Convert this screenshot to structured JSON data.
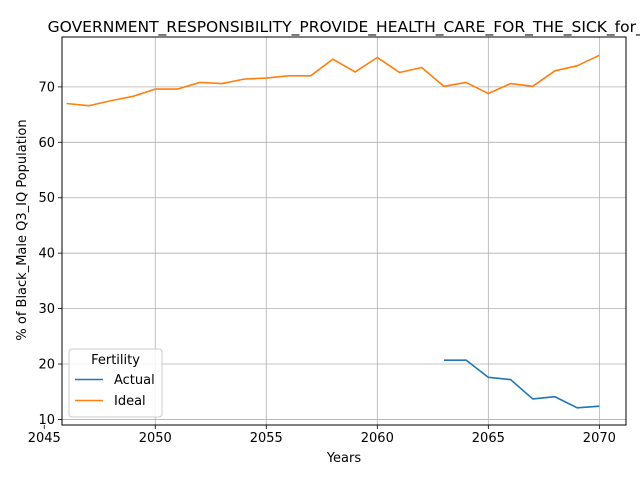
{
  "chart_data": {
    "type": "line",
    "title": "GOVERNMENT_RESPONSIBILITY_PROVIDE_HEALTH_CARE_FOR_THE_SICK_for_B",
    "xlabel": "Years",
    "ylabel": "% of Black_Male Q3_IQ Population",
    "xlim": [
      2045.8,
      2071.2
    ],
    "ylim": [
      9.0,
      79.0
    ],
    "xticks": [
      2045,
      2050,
      2055,
      2060,
      2065,
      2070
    ],
    "yticks": [
      10,
      20,
      30,
      40,
      50,
      60,
      70
    ],
    "grid": true,
    "legend": {
      "title": "Fertility",
      "placement": "lower-left"
    },
    "series": [
      {
        "name": "Actual",
        "color": "#1f77b4",
        "x": [
          2063,
          2064,
          2065,
          2066,
          2067,
          2068,
          2069,
          2070
        ],
        "y": [
          20.7,
          20.7,
          17.6,
          17.2,
          13.7,
          14.1,
          12.1,
          12.4
        ]
      },
      {
        "name": "Ideal",
        "color": "#ff7f0e",
        "x": [
          2046,
          2047,
          2048,
          2049,
          2050,
          2051,
          2052,
          2053,
          2054,
          2055,
          2056,
          2057,
          2058,
          2059,
          2060,
          2061,
          2062,
          2063,
          2064,
          2065,
          2066,
          2067,
          2068,
          2069,
          2070
        ],
        "y": [
          67.0,
          66.6,
          67.5,
          68.3,
          69.6,
          69.6,
          70.8,
          70.6,
          71.4,
          71.6,
          72.0,
          72.0,
          75.0,
          72.7,
          75.3,
          72.6,
          73.5,
          70.1,
          70.8,
          68.8,
          70.6,
          70.1,
          72.9,
          73.8,
          75.7
        ]
      }
    ]
  }
}
